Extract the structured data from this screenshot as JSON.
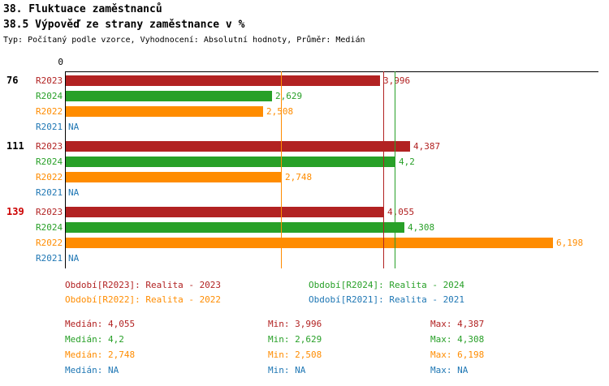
{
  "header": {
    "title": "38. Fluktuace zaměstnanců",
    "subtitle": "38.5 Výpověď ze strany zaměstnance v %",
    "meta": "Typ: Počítaný podle vzorce, Vyhodnocení: Absolutní hodnoty, Průměr: Medián"
  },
  "colors": {
    "R2023": "#b22222",
    "R2024": "#28a028",
    "R2022": "#ff8c00",
    "R2021": "#1f77b4",
    "axis": "#000000",
    "group_label": "#000000",
    "group_label_highlight": "#cc0000"
  },
  "chart_data": {
    "type": "bar",
    "orientation": "horizontal",
    "value_unit": "%",
    "xlim": [
      0,
      6.79
    ],
    "axis_tick_labels": [
      "0"
    ],
    "series_order": [
      "R2023",
      "R2024",
      "R2022",
      "R2021"
    ],
    "groups": [
      {
        "label": "76",
        "highlight": false,
        "bars": [
          {
            "series": "R2023",
            "value": 3.996,
            "label": "3,996"
          },
          {
            "series": "R2024",
            "value": 2.629,
            "label": "2,629"
          },
          {
            "series": "R2022",
            "value": 2.508,
            "label": "2,508"
          },
          {
            "series": "R2021",
            "value": null,
            "label": "NA"
          }
        ]
      },
      {
        "label": "111",
        "highlight": false,
        "bars": [
          {
            "series": "R2023",
            "value": 4.387,
            "label": "4,387"
          },
          {
            "series": "R2024",
            "value": 4.2,
            "label": "4,2"
          },
          {
            "series": "R2022",
            "value": 2.748,
            "label": "2,748"
          },
          {
            "series": "R2021",
            "value": null,
            "label": "NA"
          }
        ]
      },
      {
        "label": "139",
        "highlight": true,
        "bars": [
          {
            "series": "R2023",
            "value": 4.055,
            "label": "4,055"
          },
          {
            "series": "R2024",
            "value": 4.308,
            "label": "4,308"
          },
          {
            "series": "R2022",
            "value": 6.198,
            "label": "6,198"
          },
          {
            "series": "R2021",
            "value": null,
            "label": "NA"
          }
        ]
      }
    ],
    "median_lines": [
      {
        "series": "R2023",
        "value": 4.055
      },
      {
        "series": "R2024",
        "value": 4.2
      },
      {
        "series": "R2022",
        "value": 2.748
      },
      {
        "series": "R2021",
        "value": null
      }
    ],
    "legend": [
      {
        "series": "R2023",
        "label": "Období[R2023]: Realita - 2023"
      },
      {
        "series": "R2024",
        "label": "Období[R2024]: Realita - 2024"
      },
      {
        "series": "R2022",
        "label": "Období[R2022]: Realita - 2022"
      },
      {
        "series": "R2021",
        "label": "Období[R2021]: Realita - 2021"
      }
    ],
    "stats": [
      {
        "series": "R2023",
        "median": "Medián: 4,055",
        "min": "Min: 3,996",
        "max": "Max: 4,387"
      },
      {
        "series": "R2024",
        "median": "Medián: 4,2",
        "min": "Min: 2,629",
        "max": "Max: 4,308"
      },
      {
        "series": "R2022",
        "median": "Medián: 2,748",
        "min": "Min: 2,508",
        "max": "Max: 6,198"
      },
      {
        "series": "R2021",
        "median": "Medián: NA",
        "min": "Min: NA",
        "max": "Max: NA"
      }
    ]
  }
}
